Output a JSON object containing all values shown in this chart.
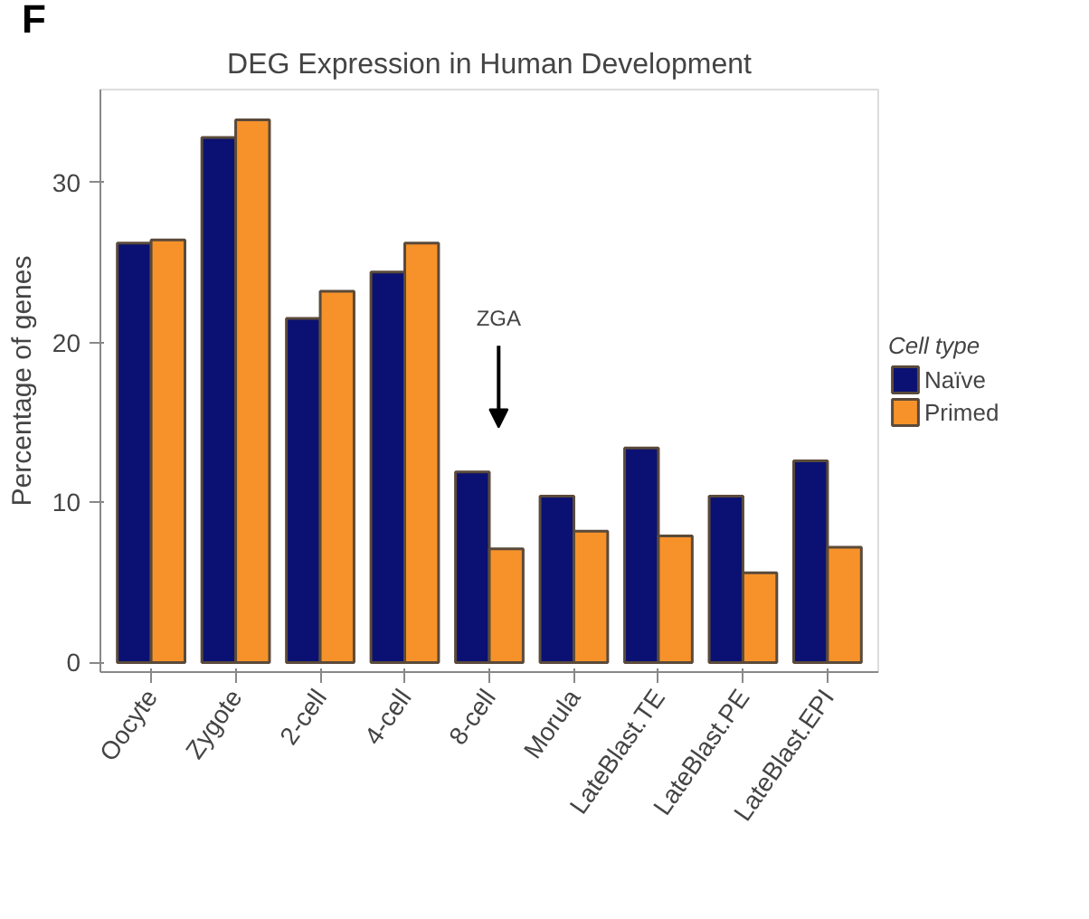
{
  "chart_data": {
    "type": "bar",
    "title": "DEG Expression in Human Development",
    "ylabel": "Percentage of genes",
    "legend_title": "Cell type",
    "legend": "right",
    "categories": [
      "Oocyte",
      "Zygote",
      "2-cell",
      "4-cell",
      "8-cell",
      "Morula",
      "LateBlast.TE",
      "LateBlast.PE",
      "LateBlast.EPI"
    ],
    "series": [
      {
        "name": "Naïve",
        "color": "#0a1172",
        "values": [
          26.2,
          32.8,
          21.5,
          24.4,
          11.9,
          10.4,
          13.4,
          10.4,
          12.6
        ]
      },
      {
        "name": "Primed",
        "color": "#f7922a",
        "values": [
          26.4,
          33.9,
          23.2,
          26.2,
          7.1,
          8.2,
          7.9,
          5.6,
          7.2
        ]
      }
    ],
    "ylim": [
      -0.6,
      35.8
    ],
    "yticks": [
      0,
      10,
      20,
      30
    ],
    "grid": false,
    "annotations": [
      "F",
      "ZGA"
    ]
  }
}
